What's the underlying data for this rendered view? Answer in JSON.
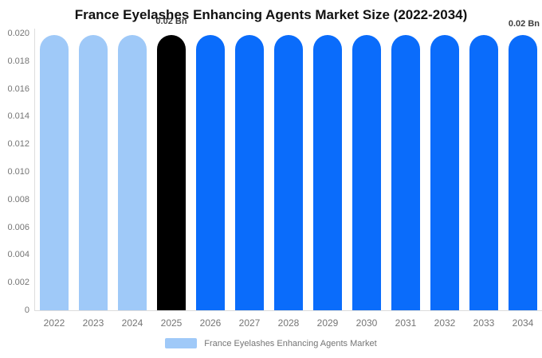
{
  "title": "France Eyelashes Enhancing Agents Market Size (2022-2034)",
  "annotations": {
    "bar_2025": "0.02 Bn",
    "final": "0.02 Bn"
  },
  "legend": {
    "label": "France Eyelashes Enhancing Agents Market",
    "swatch_color": "#9FC9F8"
  },
  "colors": {
    "historical_bar": "#9FC9F8",
    "base_year_bar": "#000000",
    "forecast_bar": "#0A6CFB",
    "axis_line": "#DDDDDD",
    "axis_text": "#757575",
    "title_text": "#111111",
    "annotation_text": "#3D3D3D",
    "background": "#FFFFFF"
  },
  "chart_data": {
    "type": "bar",
    "title": "France Eyelashes Enhancing Agents Market Size (2022-2034)",
    "categories": [
      "2022",
      "2023",
      "2024",
      "2025",
      "2026",
      "2027",
      "2028",
      "2029",
      "2030",
      "2031",
      "2032",
      "2033",
      "2034"
    ],
    "values": [
      0.02,
      0.02,
      0.02,
      0.02,
      0.02,
      0.02,
      0.02,
      0.02,
      0.02,
      0.02,
      0.02,
      0.02,
      0.02
    ],
    "bar_colors": [
      "#9FC9F8",
      "#9FC9F8",
      "#9FC9F8",
      "#000000",
      "#0A6CFB",
      "#0A6CFB",
      "#0A6CFB",
      "#0A6CFB",
      "#0A6CFB",
      "#0A6CFB",
      "#0A6CFB",
      "#0A6CFB",
      "#0A6CFB"
    ],
    "ylim": [
      0,
      0.02
    ],
    "yticks": [
      {
        "value": 0,
        "label": "0"
      },
      {
        "value": 0.002,
        "label": "0.002"
      },
      {
        "value": 0.004,
        "label": "0.004"
      },
      {
        "value": 0.006,
        "label": "0.006"
      },
      {
        "value": 0.008,
        "label": "0.008"
      },
      {
        "value": 0.01,
        "label": "0.010"
      },
      {
        "value": 0.012,
        "label": "0.012"
      },
      {
        "value": 0.014,
        "label": "0.014"
      },
      {
        "value": 0.016,
        "label": "0.016"
      },
      {
        "value": 0.018,
        "label": "0.018"
      },
      {
        "value": 0.02,
        "label": "0.020"
      }
    ],
    "xlabel": "",
    "ylabel": "",
    "grid": false,
    "legend_position": "bottom",
    "legend_entries": [
      "France Eyelashes Enhancing Agents Market"
    ],
    "annotations": [
      {
        "category": "2025",
        "text": "0.02 Bn"
      },
      {
        "category": "2034",
        "text": "0.02 Bn",
        "placement": "top-right"
      }
    ]
  }
}
